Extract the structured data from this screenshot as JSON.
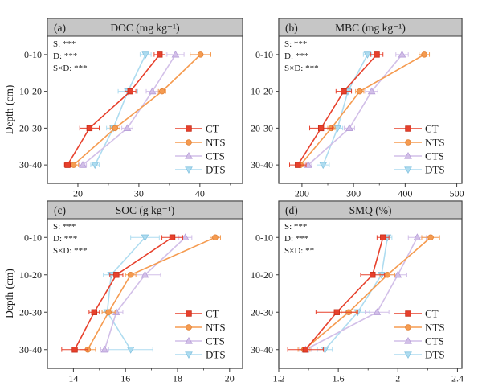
{
  "figure": {
    "background": "#ffffff",
    "border_color": "#3a3a3a",
    "header_bg": "#c6c6c6",
    "text_color": "#1a1a1a",
    "depth_axis_label": "Depth (cm)",
    "categories": [
      "0-10",
      "10-20",
      "20-30",
      "30-40"
    ],
    "legend_labels": [
      "CT",
      "NTS",
      "CTS",
      "DTS"
    ]
  },
  "chart_data": [
    {
      "type": "line",
      "panel_label": "(a)",
      "title": "DOC (mg kg⁻¹)",
      "stats": [
        "S: ***",
        "D: ***",
        "S×D: ***"
      ],
      "ylabel": "Depth (cm)",
      "categories": [
        "0-10",
        "10-20",
        "20-30",
        "30-40"
      ],
      "xlim": [
        15,
        47
      ],
      "xticks": [
        20,
        30,
        40
      ],
      "minor_xticks": [
        25,
        35,
        45
      ],
      "legend_position": "bottom-right",
      "series": [
        {
          "name": "CT",
          "marker": "square",
          "color": "#e7402c",
          "edge": "#c52c18",
          "values": [
            33.4,
            28.6,
            21.9,
            18.3
          ],
          "errors": [
            0.9,
            0.9,
            1.6,
            0.5
          ]
        },
        {
          "name": "NTS",
          "marker": "circle",
          "color": "#f59b50",
          "edge": "#e07f33",
          "values": [
            40.1,
            33.8,
            26.1,
            19.3
          ],
          "errors": [
            1.7,
            0.6,
            0.8,
            0.8
          ]
        },
        {
          "name": "CTS",
          "marker": "triangle-up",
          "color": "#d2bfe8",
          "edge": "#b79ed8",
          "values": [
            36.0,
            32.2,
            28.1,
            20.8
          ],
          "errors": [
            1.4,
            1.0,
            0.9,
            0.6
          ]
        },
        {
          "name": "DTS",
          "marker": "triangle-down",
          "color": "#aedcf0",
          "edge": "#85c3e0",
          "values": [
            31.1,
            28.2,
            25.8,
            22.8
          ],
          "errors": [
            0.9,
            1.6,
            1.1,
            0.7
          ]
        }
      ]
    },
    {
      "type": "line",
      "panel_label": "(b)",
      "title": "MBC (mg kg⁻¹)",
      "stats": [
        "S: ***",
        "D: ***",
        "S×D: ***"
      ],
      "ylabel": "",
      "categories": [
        "0-10",
        "10-20",
        "20-30",
        "30-40"
      ],
      "xlim": [
        155,
        510
      ],
      "xticks": [
        200,
        300,
        400,
        500
      ],
      "minor_xticks": [
        250,
        350,
        450
      ],
      "legend_position": "bottom-right",
      "series": [
        {
          "name": "CT",
          "marker": "square",
          "color": "#e7402c",
          "edge": "#c52c18",
          "values": [
            345,
            281,
            237,
            192
          ],
          "errors": [
            12,
            15,
            22,
            16
          ]
        },
        {
          "name": "NTS",
          "marker": "circle",
          "color": "#f59b50",
          "edge": "#e07f33",
          "values": [
            437,
            312,
            257,
            197
          ],
          "errors": [
            10,
            8,
            7,
            6
          ]
        },
        {
          "name": "CTS",
          "marker": "triangle-up",
          "color": "#d2bfe8",
          "edge": "#b79ed8",
          "values": [
            394,
            335,
            292,
            212
          ],
          "errors": [
            12,
            12,
            10,
            7
          ]
        },
        {
          "name": "DTS",
          "marker": "triangle-down",
          "color": "#aedcf0",
          "edge": "#85c3e0",
          "values": [
            327,
            289,
            269,
            241
          ],
          "errors": [
            8,
            7,
            10,
            12
          ]
        }
      ]
    },
    {
      "type": "line",
      "panel_label": "(c)",
      "title": "SOC (g kg⁻¹)",
      "stats": [
        "S: ***",
        "D: ***",
        "S×D: ***"
      ],
      "ylabel": "Depth (cm)",
      "categories": [
        "0-10",
        "10-20",
        "20-30",
        "30-40"
      ],
      "xlim": [
        13,
        20.5
      ],
      "xticks": [
        14,
        16,
        18,
        20
      ],
      "minor_xticks": [
        15,
        17,
        19
      ],
      "legend_position": "bottom-right",
      "series": [
        {
          "name": "CT",
          "marker": "square",
          "color": "#e7402c",
          "edge": "#c52c18",
          "values": [
            17.8,
            15.65,
            14.8,
            14.05
          ],
          "errors": [
            0.4,
            0.25,
            0.2,
            0.5
          ]
        },
        {
          "name": "NTS",
          "marker": "circle",
          "color": "#f59b50",
          "edge": "#e07f33",
          "values": [
            19.45,
            16.2,
            15.35,
            14.55
          ],
          "errors": [
            0.2,
            0.2,
            0.25,
            0.3
          ]
        },
        {
          "name": "CTS",
          "marker": "triangle-up",
          "color": "#d2bfe8",
          "edge": "#b79ed8",
          "values": [
            18.3,
            16.75,
            15.65,
            15.2
          ],
          "errors": [
            0.25,
            0.6,
            0.25,
            0.15
          ]
        },
        {
          "name": "DTS",
          "marker": "triangle-down",
          "color": "#aedcf0",
          "edge": "#85c3e0",
          "values": [
            16.75,
            15.45,
            15.3,
            16.2
          ],
          "errors": [
            0.55,
            0.3,
            0.2,
            0.85
          ]
        }
      ]
    },
    {
      "type": "line",
      "panel_label": "(d)",
      "title": "SMQ (%)",
      "stats": [
        "S: ***",
        "D: ***",
        "S×D: **"
      ],
      "ylabel": "",
      "categories": [
        "0-10",
        "10-20",
        "20-30",
        "30-40"
      ],
      "xlim": [
        1.2,
        2.43
      ],
      "xticks": [
        1.2,
        1.6,
        2.0,
        2.4
      ],
      "minor_xticks": [
        1.4,
        1.8,
        2.2
      ],
      "legend_position": "bottom-right",
      "series": [
        {
          "name": "CT",
          "marker": "square",
          "color": "#e7402c",
          "edge": "#c52c18",
          "values": [
            1.9,
            1.83,
            1.59,
            1.38
          ],
          "errors": [
            0.04,
            0.08,
            0.14,
            0.12
          ]
        },
        {
          "name": "NTS",
          "marker": "circle",
          "color": "#f59b50",
          "edge": "#e07f33",
          "values": [
            2.22,
            1.93,
            1.67,
            1.37
          ],
          "errors": [
            0.06,
            0.05,
            0.05,
            0.04
          ]
        },
        {
          "name": "CTS",
          "marker": "triangle-up",
          "color": "#d2bfe8",
          "edge": "#b79ed8",
          "values": [
            2.13,
            2.0,
            1.86,
            1.38
          ],
          "errors": [
            0.06,
            0.06,
            0.08,
            0.04
          ]
        },
        {
          "name": "DTS",
          "marker": "triangle-down",
          "color": "#aedcf0",
          "edge": "#85c3e0",
          "values": [
            1.93,
            1.89,
            1.73,
            1.51
          ],
          "errors": [
            0.03,
            0.05,
            0.08,
            0.05
          ]
        }
      ]
    }
  ]
}
